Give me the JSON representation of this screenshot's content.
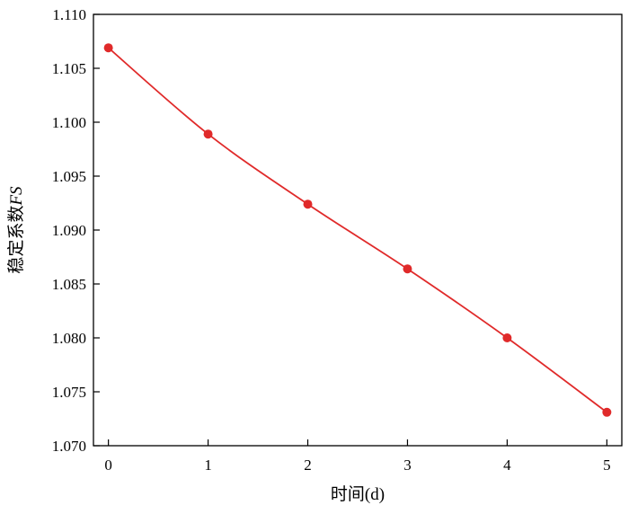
{
  "chart_data": {
    "type": "line",
    "x": [
      0,
      1,
      2,
      3,
      4,
      5
    ],
    "series": [
      {
        "values": [
          1.1069,
          1.0989,
          1.0924,
          1.0864,
          1.08,
          1.0731
        ]
      }
    ],
    "xlabel": "时间(d)",
    "ylabel_prefix": "稳定系数",
    "ylabel_symbol": "FS",
    "xlim": [
      -0.15,
      5.15
    ],
    "ylim": [
      1.07,
      1.11
    ],
    "xticks": [
      0,
      1,
      2,
      3,
      4,
      5
    ],
    "xtick_labels": [
      "0",
      "1",
      "2",
      "3",
      "4",
      "5"
    ],
    "yticks": [
      1.07,
      1.075,
      1.08,
      1.085,
      1.09,
      1.095,
      1.1,
      1.105,
      1.11
    ],
    "ytick_labels": [
      "1.070",
      "1.075",
      "1.080",
      "1.085",
      "1.090",
      "1.095",
      "1.100",
      "1.105",
      "1.110"
    ],
    "grid": false,
    "line_color": "#e02a2a",
    "marker": "circle"
  }
}
